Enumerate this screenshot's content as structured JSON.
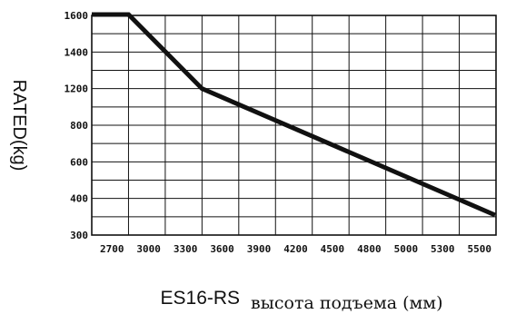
{
  "chart_data": {
    "type": "line",
    "xlabel_main": "ES16-RS",
    "xlabel_sub": "высота подъема (мм)",
    "ylabel": "RATED(kg)",
    "x_ticks": [
      "2700",
      "3000",
      "3300",
      "3600",
      "3900",
      "4200",
      "4500",
      "4800",
      "5000",
      "5300",
      "5500"
    ],
    "y_ticks": [
      "300",
      "400",
      "600",
      "800",
      "1200",
      "1400",
      "1600"
    ],
    "grid": true,
    "series": [
      {
        "color": "#111111",
        "points": [
          {
            "x": "2700",
            "y": "1600",
            "xpos": -1
          },
          {
            "x": "3000",
            "y": "1600",
            "xpos": 1
          },
          {
            "x": "3600",
            "y": "1200",
            "xpos": 3
          },
          {
            "x": "5500",
            "y": "300",
            "xpos": 10
          }
        ]
      }
    ]
  }
}
